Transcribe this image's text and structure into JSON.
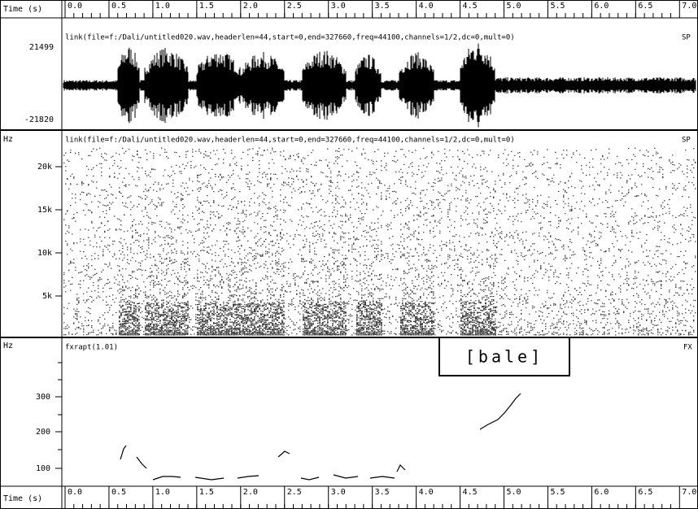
{
  "top_axis": {
    "label": "Time (s)",
    "ticks": [
      "0.0",
      "0.5",
      "1.0",
      "1.5",
      "2.0",
      "2.5",
      "3.0",
      "3.5",
      "4.0",
      "4.5",
      "5.0",
      "5.5",
      "6.0",
      "6.5",
      "7.0"
    ]
  },
  "waveform": {
    "header": "link(file=f:/Dali/untitled020.wav,headerlen=44,start=0,end=327660,freq=44100,channels=1/2,dc=0,mult=0)",
    "tag": "SP",
    "max_label": "21499",
    "min_label": "-21820"
  },
  "spectrogram": {
    "unit": "Hz",
    "header": "link(file=f:/Dali/untitled020.wav,headerlen=44,start=0,end=327660,freq=44100,channels=1/2,dc=0,mult=0)",
    "tag": "SP",
    "ticks": [
      "20k",
      "15k",
      "10k",
      "5k"
    ]
  },
  "pitch": {
    "unit": "Hz",
    "header": "fxrapt(1.01)",
    "tag": "FX",
    "ticks": [
      "300",
      "200",
      "100"
    ],
    "annotation": "[bale]"
  },
  "bottom_axis": {
    "label": "Time (s)",
    "ticks": [
      "0.0",
      "0.5",
      "1.0",
      "1.5",
      "2.0",
      "2.5",
      "3.0",
      "3.5",
      "4.0",
      "4.5",
      "5.0",
      "5.5",
      "6.0",
      "6.5",
      "7.0"
    ]
  }
}
